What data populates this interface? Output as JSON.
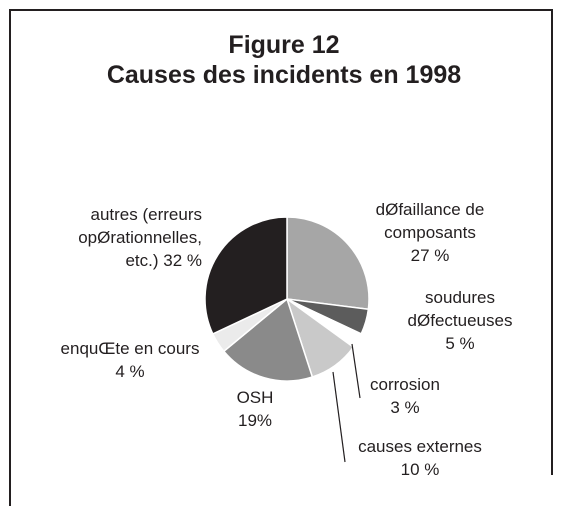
{
  "chart_data": {
    "type": "pie",
    "title": "Figure 12",
    "subtitle": "Causes des incidents en 1998",
    "categories": [
      "dØfaillance de composants",
      "soudures dØfectueuses",
      "corrosion",
      "causes externes",
      "OSH",
      "enquŒte en cours",
      "autres (erreurs opØrationnelles, etc.)"
    ],
    "values": [
      27,
      5,
      3,
      10,
      19,
      4,
      32
    ],
    "value_labels": [
      "27 %",
      "5 %",
      "3 %",
      "10 %",
      "19%",
      "4 %",
      "32 %"
    ],
    "colors": [
      "#a6a6a6",
      "#5c5c5c",
      "#ffffff",
      "#c9c9c9",
      "#8a8a8a",
      "#ebebeb",
      "#231f20"
    ]
  }
}
